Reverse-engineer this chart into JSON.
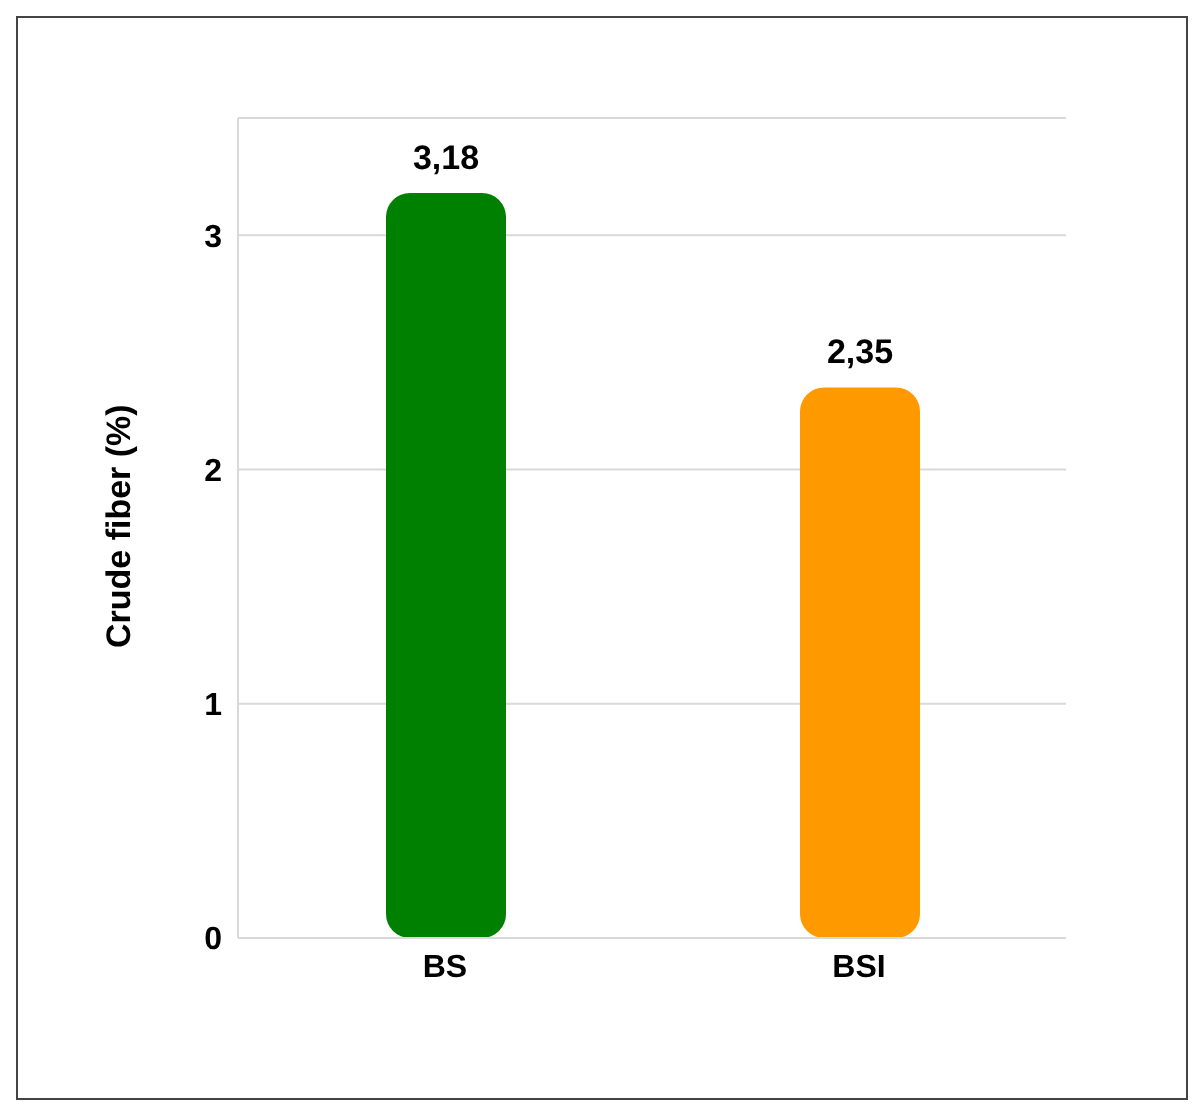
{
  "chart_data": {
    "type": "bar",
    "ylabel": "Crude fiber (%)",
    "categories": [
      "BS",
      "BSI"
    ],
    "values": [
      3.18,
      2.35
    ],
    "colors": [
      "#008000",
      "#ff9900"
    ],
    "value_labels": [
      "3,18",
      "2,35"
    ],
    "ylim": [
      0,
      3.5
    ],
    "yticks": [
      0,
      1,
      2,
      3
    ],
    "grid": "y"
  }
}
